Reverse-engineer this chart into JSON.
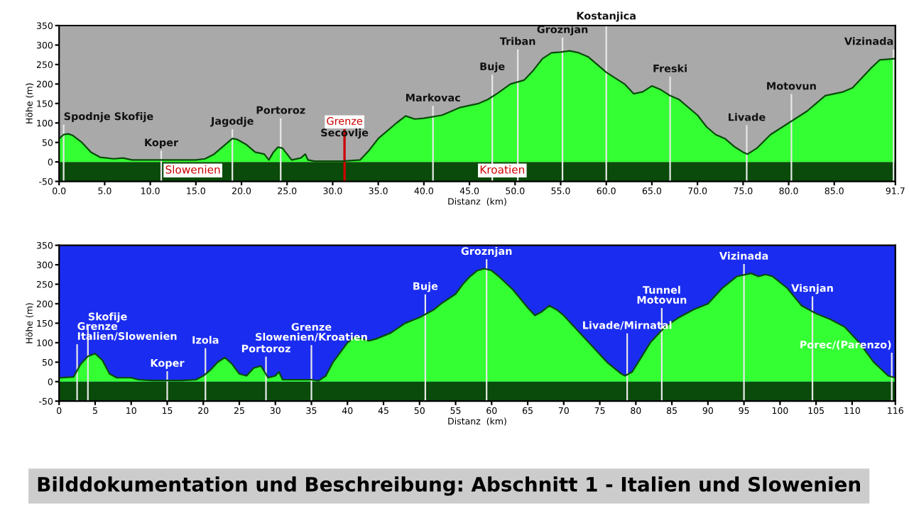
{
  "chart_data": [
    {
      "type": "area",
      "xlabel": "Distanz  (km)",
      "ylabel": "Höhe (m)",
      "x": [
        0,
        0.5,
        1,
        1.5,
        2.5,
        3.5,
        4.5,
        6,
        7,
        8,
        10,
        12,
        15,
        16,
        17,
        18,
        19,
        19.5,
        20.5,
        21.5,
        22.5,
        23,
        23.5,
        24,
        24.5,
        25.5,
        26.5,
        27,
        27.3,
        28,
        31,
        33,
        34,
        35,
        37,
        38,
        39,
        40,
        42,
        44,
        46,
        47,
        48,
        49.5,
        51,
        52,
        53,
        54,
        55,
        56,
        57,
        58,
        60,
        62,
        63,
        64,
        65,
        66,
        67,
        68,
        70,
        71,
        72,
        73,
        74,
        75,
        75.5,
        76.5,
        78,
        80,
        82,
        83,
        84,
        86,
        87,
        89,
        90,
        91.7
      ],
      "series": [
        {
          "color": "#33ff33",
          "values": [
            60,
            70,
            72,
            68,
            50,
            25,
            12,
            8,
            10,
            5,
            5,
            5,
            5,
            8,
            20,
            40,
            60,
            58,
            45,
            25,
            20,
            5,
            25,
            38,
            35,
            5,
            10,
            20,
            5,
            2,
            2,
            5,
            30,
            60,
            100,
            118,
            110,
            112,
            120,
            140,
            150,
            160,
            175,
            200,
            210,
            235,
            265,
            280,
            282,
            285,
            280,
            270,
            230,
            200,
            175,
            180,
            195,
            185,
            170,
            160,
            120,
            90,
            70,
            60,
            40,
            25,
            20,
            35,
            70,
            100,
            130,
            150,
            170,
            180,
            190,
            240,
            262,
            265
          ]
        }
      ],
      "xlim": [
        0,
        91.7
      ],
      "ylim": [
        -50,
        350
      ],
      "xticks": [
        {
          "value": 0,
          "label": "0.0"
        },
        {
          "value": 5,
          "label": "5.0"
        },
        {
          "value": 10,
          "label": "10.0"
        },
        {
          "value": 15,
          "label": "15.0"
        },
        {
          "value": 20,
          "label": "20.0"
        },
        {
          "value": 25,
          "label": "25.0"
        },
        {
          "value": 30,
          "label": "30.0"
        },
        {
          "value": 35,
          "label": "35.0"
        },
        {
          "value": 40,
          "label": "40.0"
        },
        {
          "value": 45,
          "label": "45.0"
        },
        {
          "value": 50,
          "label": "50.0"
        },
        {
          "value": 55,
          "label": "55.0"
        },
        {
          "value": 60,
          "label": "60.0"
        },
        {
          "value": 65,
          "label": "65.0"
        },
        {
          "value": 70,
          "label": "70.0"
        },
        {
          "value": 75,
          "label": "75.0"
        },
        {
          "value": 80,
          "label": "80.0"
        },
        {
          "value": 85,
          "label": "85.0"
        },
        {
          "value": 91.7,
          "label": "91.7"
        }
      ],
      "yticks": [
        -50,
        0,
        50,
        100,
        150,
        200,
        250,
        300,
        350
      ],
      "bands": [
        {
          "axis": "y",
          "from": -50,
          "to": 0,
          "color": "#0a4a0a"
        }
      ],
      "ref_lines": [
        {
          "axis": "x",
          "value": 0.5,
          "label": "Spodnje Skofije"
        },
        {
          "axis": "x",
          "value": 11.2,
          "label": "Koper"
        },
        {
          "axis": "x",
          "value": 19,
          "label": "Jagodje"
        },
        {
          "axis": "x",
          "value": 24.3,
          "label": "Portoroz"
        },
        {
          "axis": "x",
          "value": 31.3,
          "label": "Secovlje"
        },
        {
          "axis": "x",
          "value": 31.3,
          "label": "Grenze",
          "color": "#cc0000"
        },
        {
          "axis": "x",
          "value": 41,
          "label": "Markovac"
        },
        {
          "axis": "x",
          "value": 47.5,
          "label": "Buje"
        },
        {
          "axis": "x",
          "value": 50.3,
          "label": "Triban"
        },
        {
          "axis": "x",
          "value": 55.2,
          "label": "Groznjan"
        },
        {
          "axis": "x",
          "value": 60,
          "label": "Kostanjica"
        },
        {
          "axis": "x",
          "value": 67,
          "label": "Freski"
        },
        {
          "axis": "x",
          "value": 75.4,
          "label": "Livade"
        },
        {
          "axis": "x",
          "value": 80.3,
          "label": "Motovun"
        },
        {
          "axis": "x",
          "value": 91.5,
          "label": "Vizinada"
        }
      ],
      "annotations": [
        "Slowenien",
        "Kroatien"
      ]
    },
    {
      "type": "area",
      "xlabel": "Distanz  (km)",
      "ylabel": "Höhe (m)",
      "x": [
        0,
        2,
        3,
        4,
        5,
        6,
        7,
        8,
        10,
        11,
        13,
        17,
        19,
        20,
        21,
        22,
        23,
        24,
        25,
        26,
        27,
        28,
        29,
        30,
        30.5,
        31,
        35,
        36,
        37,
        38,
        40,
        41,
        42,
        43,
        44,
        46,
        48,
        50,
        52,
        53,
        55,
        56,
        57,
        58,
        59,
        60,
        61,
        63,
        65,
        66,
        67,
        68,
        69,
        70,
        72,
        74,
        76,
        78,
        78.5,
        79.5,
        81,
        82,
        84,
        86,
        88,
        90,
        92,
        94,
        96,
        97,
        98,
        99,
        101,
        103,
        105,
        107,
        109,
        111,
        113,
        115,
        116
      ],
      "series": [
        {
          "color": "#33ff33",
          "values": [
            10,
            12,
            45,
            65,
            72,
            55,
            20,
            10,
            10,
            5,
            3,
            3,
            5,
            15,
            30,
            50,
            62,
            45,
            20,
            15,
            35,
            40,
            10,
            15,
            25,
            5,
            5,
            2,
            15,
            50,
            100,
            115,
            110,
            105,
            110,
            125,
            150,
            165,
            185,
            200,
            225,
            250,
            270,
            285,
            290,
            285,
            270,
            235,
            190,
            170,
            180,
            195,
            185,
            170,
            130,
            90,
            50,
            20,
            15,
            25,
            70,
            100,
            140,
            165,
            185,
            200,
            240,
            270,
            278,
            270,
            275,
            270,
            240,
            195,
            175,
            160,
            140,
            100,
            50,
            15,
            10
          ]
        }
      ],
      "xlim": [
        0,
        116
      ],
      "ylim": [
        -50,
        350
      ],
      "xticks": [
        0,
        5,
        10,
        15,
        20,
        25,
        30,
        35,
        40,
        45,
        50,
        55,
        60,
        65,
        70,
        75,
        80,
        85,
        90,
        95,
        100,
        105,
        110,
        116
      ],
      "yticks": [
        -50,
        0,
        50,
        100,
        150,
        200,
        250,
        300,
        350
      ],
      "bands": [
        {
          "axis": "y",
          "from": -50,
          "to": 0,
          "color": "#0a4a0a"
        }
      ],
      "ref_lines": [
        {
          "axis": "x",
          "value": 2.5,
          "label": "Grenze\nItalien/Slowenien"
        },
        {
          "axis": "x",
          "value": 4,
          "label": "Skofije"
        },
        {
          "axis": "x",
          "value": 15,
          "label": "Koper"
        },
        {
          "axis": "x",
          "value": 20.3,
          "label": "Izola"
        },
        {
          "axis": "x",
          "value": 28.7,
          "label": "Portoroz"
        },
        {
          "axis": "x",
          "value": 35,
          "label": "Grenze\nSlowenien/Kroatien"
        },
        {
          "axis": "x",
          "value": 50.8,
          "label": "Buje"
        },
        {
          "axis": "x",
          "value": 59.3,
          "label": "Groznjan"
        },
        {
          "axis": "x",
          "value": 78.8,
          "label": "Livade/Mirnatal"
        },
        {
          "axis": "x",
          "value": 83.6,
          "label": "Tunnel\nMotovun"
        },
        {
          "axis": "x",
          "value": 95,
          "label": "Vizinada"
        },
        {
          "axis": "x",
          "value": 104.5,
          "label": "Visnjan"
        },
        {
          "axis": "x",
          "value": 115.5,
          "label": "Porec/(Parenzo)"
        }
      ],
      "annotations": [
        "Bilddokumentation und Beschreibung: Abschnitt 1 - Italien und Slowenien"
      ]
    }
  ]
}
